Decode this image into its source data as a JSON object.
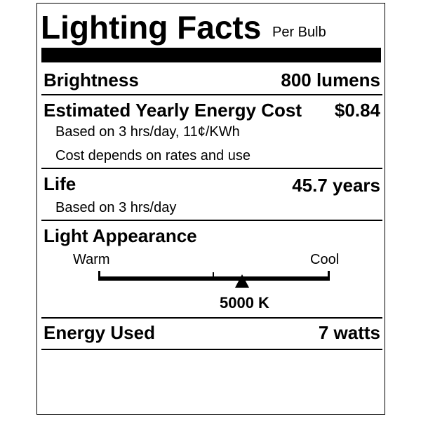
{
  "header": {
    "title": "Lighting Facts",
    "subtitle": "Per Bulb"
  },
  "brightness": {
    "label": "Brightness",
    "value": "800 lumens"
  },
  "energy_cost": {
    "label": "Estimated Yearly Energy Cost",
    "value": "$0.84",
    "note1": "Based on 3 hrs/day, 11¢/KWh",
    "note2": "Cost depends on rates and use"
  },
  "life": {
    "label": "Life",
    "value": "45.7 years",
    "note": "Based on 3 hrs/day"
  },
  "light_appearance": {
    "label": "Light Appearance",
    "warm_label": "Warm",
    "cool_label": "Cool",
    "value": "5000 K",
    "marker_fraction": 0.62
  },
  "energy_used": {
    "label": "Energy Used",
    "value": "7 watts"
  }
}
